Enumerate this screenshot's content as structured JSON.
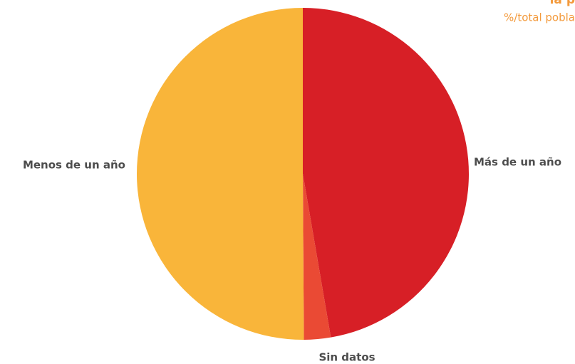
{
  "chart_data": {
    "type": "pie",
    "title": "la p",
    "subtitle": "%/total pobla",
    "categories": [
      "Más de un año",
      "Sin datos",
      "Menos de un año"
    ],
    "values": [
      47.3,
      2.6,
      50.1
    ],
    "colors": [
      "#d71f26",
      "#ea4a34",
      "#f9b53a"
    ]
  }
}
